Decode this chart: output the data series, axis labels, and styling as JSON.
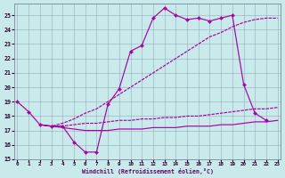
{
  "xlabel": "Windchill (Refroidissement éolien,°C)",
  "bg_color": "#c8eaea",
  "line_color": "#aa00aa",
  "grid_color": "#99aabb",
  "xlim": [
    -0.3,
    23.3
  ],
  "ylim": [
    15,
    25.8
  ],
  "yticks": [
    15,
    16,
    17,
    18,
    19,
    20,
    21,
    22,
    23,
    24,
    25
  ],
  "xticks": [
    0,
    1,
    2,
    3,
    4,
    5,
    6,
    7,
    8,
    9,
    10,
    11,
    12,
    13,
    14,
    15,
    16,
    17,
    18,
    19,
    20,
    21,
    22,
    23
  ],
  "line1_x": [
    0,
    1,
    2,
    3,
    4,
    5,
    6,
    7,
    8,
    9,
    10,
    11,
    12,
    13,
    14,
    15,
    16,
    17,
    18,
    19,
    20,
    21,
    22
  ],
  "line1_y": [
    19.0,
    18.3,
    17.4,
    17.3,
    17.3,
    16.2,
    15.5,
    15.5,
    18.8,
    19.9,
    22.5,
    22.9,
    24.8,
    25.5,
    25.0,
    24.7,
    24.8,
    24.6,
    24.8,
    25.0,
    20.2,
    18.2,
    17.7
  ],
  "line2_x": [
    2,
    3,
    4,
    5,
    6,
    7,
    8,
    9,
    10,
    11,
    12,
    13,
    14,
    15,
    16,
    17,
    18,
    19,
    20,
    21,
    22,
    23
  ],
  "line2_y": [
    17.4,
    17.3,
    17.3,
    17.4,
    17.5,
    17.5,
    17.6,
    17.7,
    17.7,
    17.8,
    17.8,
    17.9,
    17.9,
    18.0,
    18.0,
    18.1,
    18.2,
    18.3,
    18.4,
    18.5,
    18.5,
    18.6
  ],
  "line3_x": [
    2,
    3,
    4,
    5,
    6,
    7,
    8,
    9,
    10,
    11,
    12,
    13,
    14,
    15,
    16,
    17,
    18,
    19,
    20,
    21,
    22,
    23
  ],
  "line3_y": [
    17.4,
    17.3,
    17.5,
    17.8,
    18.2,
    18.5,
    19.0,
    19.5,
    20.0,
    20.5,
    21.0,
    21.5,
    22.0,
    22.5,
    23.0,
    23.5,
    23.8,
    24.2,
    24.5,
    24.7,
    24.8,
    24.8
  ],
  "line4_x": [
    2,
    3,
    4,
    5,
    6,
    7,
    8,
    9,
    10,
    11,
    12,
    13,
    14,
    15,
    16,
    17,
    18,
    19,
    20,
    21,
    22,
    23
  ],
  "line4_y": [
    17.4,
    17.3,
    17.2,
    17.1,
    17.0,
    17.0,
    17.0,
    17.1,
    17.1,
    17.1,
    17.2,
    17.2,
    17.2,
    17.3,
    17.3,
    17.3,
    17.4,
    17.4,
    17.5,
    17.6,
    17.6,
    17.7
  ]
}
